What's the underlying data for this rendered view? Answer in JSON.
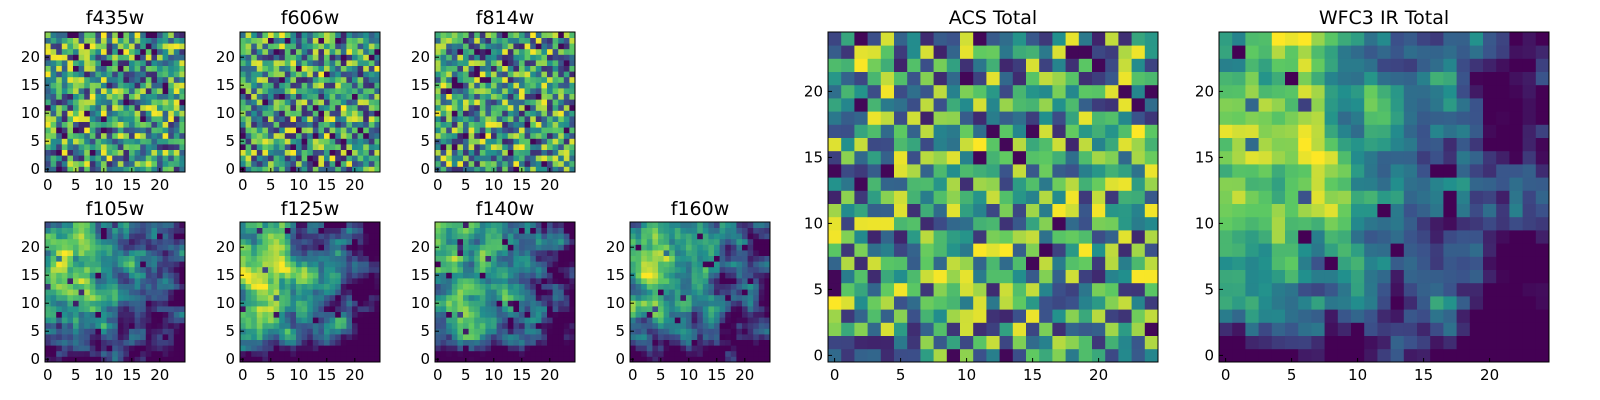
{
  "colormap": [
    "#440154",
    "#3b528b",
    "#21908d",
    "#5dc962",
    "#fde725"
  ],
  "chart_data": [
    {
      "type": "heatmap",
      "title": "f435w",
      "grid_size": 25,
      "pattern": "noise",
      "seed": 11,
      "xticks": [
        "0",
        "5",
        "10",
        "15",
        "20"
      ],
      "yticks": [
        "0",
        "5",
        "10",
        "15",
        "20"
      ],
      "xlim": [
        0,
        25
      ],
      "ylim": [
        0,
        25
      ]
    },
    {
      "type": "heatmap",
      "title": "f606w",
      "grid_size": 25,
      "pattern": "noise",
      "seed": 23,
      "xticks": [
        "0",
        "5",
        "10",
        "15",
        "20"
      ],
      "yticks": [
        "0",
        "5",
        "10",
        "15",
        "20"
      ],
      "xlim": [
        0,
        25
      ],
      "ylim": [
        0,
        25
      ]
    },
    {
      "type": "heatmap",
      "title": "f814w",
      "grid_size": 25,
      "pattern": "noise",
      "seed": 37,
      "xticks": [
        "0",
        "5",
        "10",
        "15",
        "20"
      ],
      "yticks": [
        "0",
        "5",
        "10",
        "15",
        "20"
      ],
      "xlim": [
        0,
        25
      ],
      "ylim": [
        0,
        25
      ]
    },
    {
      "type": "heatmap",
      "title": "f105w",
      "grid_size": 25,
      "pattern": "smooth",
      "seed": 41,
      "xticks": [
        "0",
        "5",
        "10",
        "15",
        "20"
      ],
      "yticks": [
        "0",
        "5",
        "10",
        "15",
        "20"
      ],
      "xlim": [
        0,
        25
      ],
      "ylim": [
        0,
        25
      ]
    },
    {
      "type": "heatmap",
      "title": "f125w",
      "grid_size": 25,
      "pattern": "smooth",
      "seed": 53,
      "xticks": [
        "0",
        "5",
        "10",
        "15",
        "20"
      ],
      "yticks": [
        "0",
        "5",
        "10",
        "15",
        "20"
      ],
      "xlim": [
        0,
        25
      ],
      "ylim": [
        0,
        25
      ]
    },
    {
      "type": "heatmap",
      "title": "f140w",
      "grid_size": 25,
      "pattern": "smooth",
      "seed": 67,
      "xticks": [
        "0",
        "5",
        "10",
        "15",
        "20"
      ],
      "yticks": [
        "0",
        "5",
        "10",
        "15",
        "20"
      ],
      "xlim": [
        0,
        25
      ],
      "ylim": [
        0,
        25
      ]
    },
    {
      "type": "heatmap",
      "title": "f160w",
      "grid_size": 25,
      "pattern": "smooth",
      "seed": 79,
      "xticks": [
        "0",
        "5",
        "10",
        "15",
        "20"
      ],
      "yticks": [
        "0",
        "5",
        "10",
        "15",
        "20"
      ],
      "xlim": [
        0,
        25
      ],
      "ylim": [
        0,
        25
      ]
    },
    {
      "type": "heatmap",
      "title": "ACS Total",
      "grid_size": 25,
      "pattern": "noise",
      "seed": 97,
      "xticks": [
        "0",
        "5",
        "10",
        "15",
        "20"
      ],
      "yticks": [
        "0",
        "5",
        "10",
        "15",
        "20"
      ],
      "xlim": [
        0,
        25
      ],
      "ylim": [
        0,
        25
      ]
    },
    {
      "type": "heatmap",
      "title": "WFC3 IR Total",
      "grid_size": 25,
      "pattern": "smooth",
      "seed": 131,
      "xticks": [
        "0",
        "5",
        "10",
        "15",
        "20"
      ],
      "yticks": [
        "0",
        "5",
        "10",
        "15",
        "20"
      ],
      "xlim": [
        0,
        25
      ],
      "ylim": [
        0,
        25
      ]
    }
  ]
}
